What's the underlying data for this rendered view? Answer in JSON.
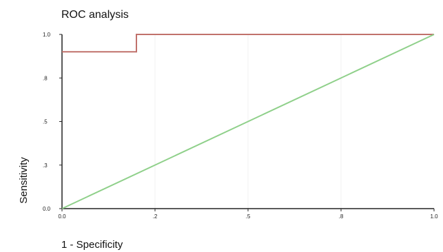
{
  "chart_data": {
    "type": "line",
    "title": "ROC analysis",
    "xlabel": "1 - Specificity",
    "ylabel": "Sensitivity",
    "xlim": [
      0,
      1
    ],
    "ylim": [
      0,
      1
    ],
    "x_ticks": [
      "0.0",
      ".2",
      ".5",
      ".8",
      "1.0"
    ],
    "x_tick_values": [
      0,
      0.25,
      0.5,
      0.75,
      1
    ],
    "y_ticks": [
      "0.0",
      ".3",
      ".5",
      ".8",
      "1.0"
    ],
    "y_tick_values": [
      0,
      0.25,
      0.5,
      0.75,
      1
    ],
    "grid": false,
    "legend": "none",
    "series": [
      {
        "color": "#c0716b",
        "points": [
          [
            0,
            0.9
          ],
          [
            0.2,
            0.9
          ],
          [
            0.2,
            1.0
          ],
          [
            1.0,
            1.0
          ]
        ]
      },
      {
        "color": "#8fd08a",
        "points": [
          [
            0,
            0
          ],
          [
            1,
            1
          ]
        ]
      }
    ]
  }
}
